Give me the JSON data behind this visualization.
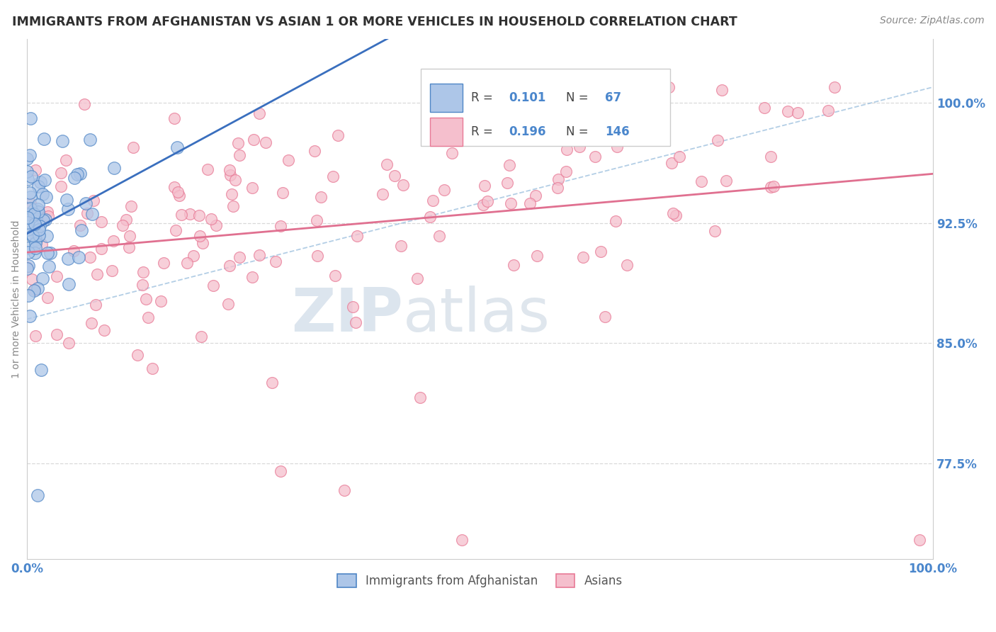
{
  "title": "IMMIGRANTS FROM AFGHANISTAN VS ASIAN 1 OR MORE VEHICLES IN HOUSEHOLD CORRELATION CHART",
  "source_text": "Source: ZipAtlas.com",
  "ylabel": "1 or more Vehicles in Household",
  "x_tick_labels": [
    "0.0%",
    "100.0%"
  ],
  "y_tick_labels": [
    "77.5%",
    "85.0%",
    "92.5%",
    "100.0%"
  ],
  "y_tick_values": [
    0.775,
    0.85,
    0.925,
    1.0
  ],
  "xlim": [
    0.0,
    1.0
  ],
  "ylim": [
    0.715,
    1.04
  ],
  "legend_label_blue": "Immigrants from Afghanistan",
  "legend_label_pink": "Asians",
  "blue_fill": "#adc6e8",
  "blue_edge": "#4f86c6",
  "pink_fill": "#f5bfcd",
  "pink_edge": "#e87a96",
  "trend_blue_color": "#3a6fbe",
  "trend_pink_color": "#e07090",
  "dash_ref_color": "#8ab4d8",
  "title_color": "#303030",
  "axis_label_color": "#4a86cc",
  "ylabel_color": "#888888",
  "source_color": "#888888",
  "watermark_zip_color": "#c0d0e0",
  "watermark_atlas_color": "#b8c8d8",
  "grid_color": "#d0d0d0",
  "background_color": "#ffffff",
  "legend_box_edge": "#cccccc",
  "r_blue": 0.101,
  "r_pink": 0.196,
  "n_blue": 67,
  "n_pink": 146,
  "blue_seed": 7,
  "pink_seed": 13,
  "marker_size_blue": 160,
  "marker_size_pink": 130
}
